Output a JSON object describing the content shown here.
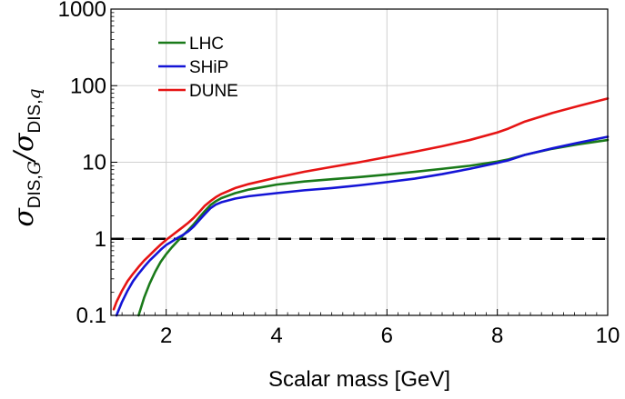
{
  "chart_data": {
    "type": "line",
    "title": "",
    "xlabel": "Scalar mass [GeV]",
    "ylabel": {
      "symbol": "σ",
      "numerator_subscript": "DIS,",
      "numerator_subscript_italic": "G",
      "separator": "/",
      "denominator_subscript": "DIS,",
      "denominator_subscript_italic": "q"
    },
    "xlim": [
      1.0,
      10.0
    ],
    "ylim": [
      0.1,
      1000
    ],
    "yscale": "log",
    "x_ticks": [
      2,
      4,
      6,
      8,
      10
    ],
    "x_tick_labels": [
      "2",
      "4",
      "6",
      "8",
      "10"
    ],
    "y_ticks": [
      0.1,
      1,
      10,
      100,
      1000
    ],
    "y_tick_labels": [
      "0.1",
      "1",
      "10",
      "100",
      "1000"
    ],
    "grid": true,
    "legend_position": "top-left",
    "reference_line": {
      "y": 1,
      "style": "dashed",
      "color": "#000000"
    },
    "series": [
      {
        "name": "LHC",
        "color": "#1a7a1a",
        "points": [
          [
            1.5,
            0.1
          ],
          [
            1.6,
            0.17
          ],
          [
            1.7,
            0.26
          ],
          [
            1.8,
            0.37
          ],
          [
            1.9,
            0.5
          ],
          [
            2.0,
            0.63
          ],
          [
            2.1,
            0.77
          ],
          [
            2.2,
            0.92
          ],
          [
            2.3,
            1.1
          ],
          [
            2.4,
            1.3
          ],
          [
            2.5,
            1.55
          ],
          [
            2.6,
            1.9
          ],
          [
            2.7,
            2.3
          ],
          [
            2.8,
            2.75
          ],
          [
            2.9,
            3.1
          ],
          [
            3.0,
            3.4
          ],
          [
            3.25,
            3.95
          ],
          [
            3.5,
            4.4
          ],
          [
            4.0,
            5.1
          ],
          [
            4.5,
            5.6
          ],
          [
            5.0,
            6.0
          ],
          [
            5.5,
            6.4
          ],
          [
            6.0,
            6.9
          ],
          [
            6.5,
            7.5
          ],
          [
            7.0,
            8.2
          ],
          [
            7.5,
            9.0
          ],
          [
            8.0,
            10.2
          ],
          [
            8.2,
            10.9
          ],
          [
            8.5,
            12.5
          ],
          [
            9.0,
            15.0
          ],
          [
            9.5,
            17.3
          ],
          [
            10.0,
            19.5
          ]
        ]
      },
      {
        "name": "SHiP",
        "color": "#1414d6",
        "points": [
          [
            1.1,
            0.1
          ],
          [
            1.2,
            0.15
          ],
          [
            1.3,
            0.21
          ],
          [
            1.4,
            0.28
          ],
          [
            1.5,
            0.35
          ],
          [
            1.6,
            0.43
          ],
          [
            1.7,
            0.52
          ],
          [
            1.8,
            0.61
          ],
          [
            1.9,
            0.72
          ],
          [
            2.0,
            0.83
          ],
          [
            2.1,
            0.92
          ],
          [
            2.2,
            1.02
          ],
          [
            2.3,
            1.12
          ],
          [
            2.4,
            1.25
          ],
          [
            2.5,
            1.45
          ],
          [
            2.6,
            1.75
          ],
          [
            2.7,
            2.1
          ],
          [
            2.8,
            2.5
          ],
          [
            2.9,
            2.8
          ],
          [
            3.0,
            3.0
          ],
          [
            3.25,
            3.35
          ],
          [
            3.5,
            3.6
          ],
          [
            4.0,
            3.95
          ],
          [
            4.5,
            4.3
          ],
          [
            5.0,
            4.6
          ],
          [
            5.5,
            5.0
          ],
          [
            6.0,
            5.5
          ],
          [
            6.5,
            6.1
          ],
          [
            7.0,
            7.0
          ],
          [
            7.5,
            8.2
          ],
          [
            8.0,
            9.8
          ],
          [
            8.2,
            10.6
          ],
          [
            8.5,
            12.5
          ],
          [
            9.0,
            15.2
          ],
          [
            9.5,
            18.2
          ],
          [
            10.0,
            21.5
          ]
        ]
      },
      {
        "name": "DUNE",
        "color": "#e61414",
        "points": [
          [
            1.05,
            0.12
          ],
          [
            1.1,
            0.15
          ],
          [
            1.2,
            0.21
          ],
          [
            1.3,
            0.28
          ],
          [
            1.4,
            0.35
          ],
          [
            1.5,
            0.43
          ],
          [
            1.6,
            0.52
          ],
          [
            1.7,
            0.61
          ],
          [
            1.8,
            0.72
          ],
          [
            1.9,
            0.84
          ],
          [
            2.0,
            0.97
          ],
          [
            2.1,
            1.1
          ],
          [
            2.2,
            1.25
          ],
          [
            2.3,
            1.42
          ],
          [
            2.4,
            1.62
          ],
          [
            2.5,
            1.88
          ],
          [
            2.6,
            2.25
          ],
          [
            2.7,
            2.7
          ],
          [
            2.8,
            3.1
          ],
          [
            2.9,
            3.5
          ],
          [
            3.0,
            3.85
          ],
          [
            3.25,
            4.6
          ],
          [
            3.5,
            5.2
          ],
          [
            4.0,
            6.3
          ],
          [
            4.5,
            7.5
          ],
          [
            5.0,
            8.7
          ],
          [
            5.5,
            10.0
          ],
          [
            6.0,
            11.7
          ],
          [
            6.5,
            13.7
          ],
          [
            7.0,
            16.2
          ],
          [
            7.5,
            19.5
          ],
          [
            8.0,
            24.5
          ],
          [
            8.2,
            27.5
          ],
          [
            8.5,
            34.0
          ],
          [
            9.0,
            44.0
          ],
          [
            9.5,
            55.0
          ],
          [
            10.0,
            68.0
          ]
        ]
      }
    ]
  }
}
